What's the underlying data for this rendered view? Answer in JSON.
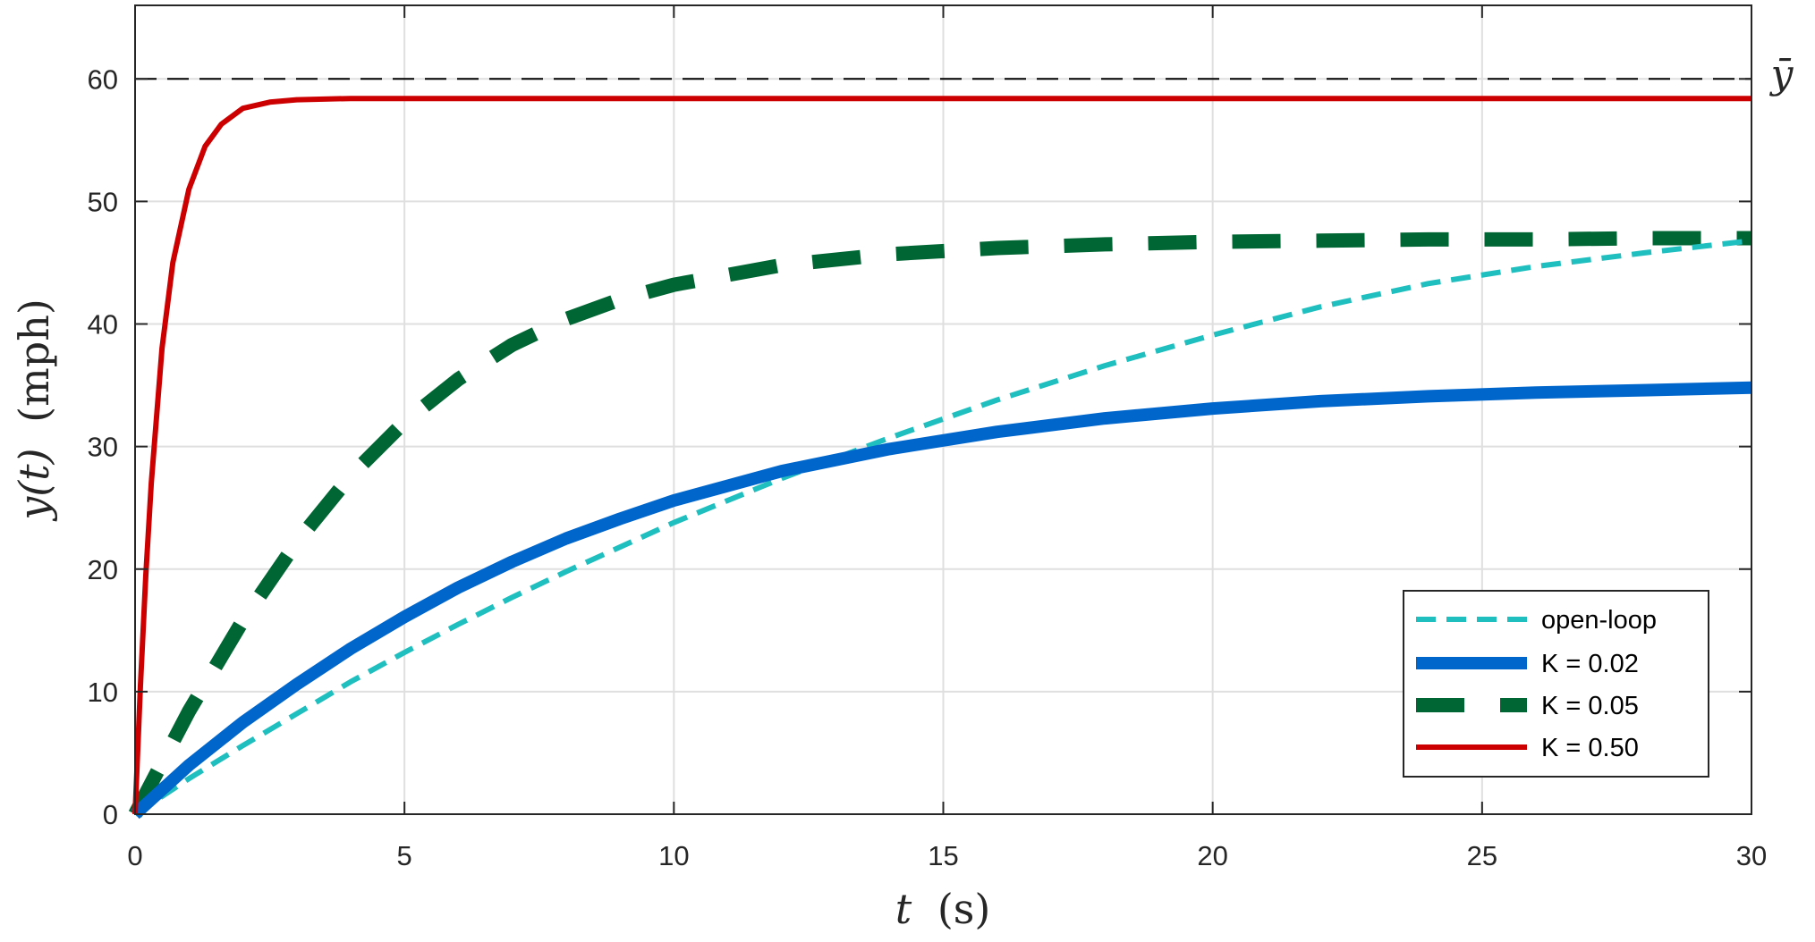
{
  "chart_data": {
    "type": "line",
    "xlabel_var": "t",
    "xlabel_unit": "(s)",
    "ylabel_var": "y(t)",
    "ylabel_unit": "(mph)",
    "xlim": [
      0,
      30
    ],
    "ylim": [
      0,
      66
    ],
    "xticks": [
      0,
      5,
      10,
      15,
      20,
      25,
      30
    ],
    "yticks": [
      0,
      10,
      20,
      30,
      40,
      50,
      60
    ],
    "grid": true,
    "legend_position": "bottom-right",
    "reference_line": {
      "y": 60,
      "label": "ȳ",
      "color": "#000000"
    },
    "series": [
      {
        "name": "open-loop",
        "color": "#1fbfbf",
        "style": "dashed",
        "x": [
          0,
          1,
          2,
          3,
          4,
          5,
          6,
          7,
          8,
          9,
          10,
          12,
          14,
          16,
          18,
          20,
          22,
          24,
          26,
          28,
          30
        ],
        "y": [
          0,
          2.9,
          5.6,
          8.2,
          10.8,
          13.2,
          15.5,
          17.7,
          19.8,
          21.8,
          23.8,
          27.4,
          30.7,
          33.8,
          36.6,
          39.1,
          41.4,
          43.3,
          44.7,
          45.8,
          46.8
        ]
      },
      {
        "name": "K = 0.02",
        "color": "#0066cc",
        "style": "solid-thick",
        "x": [
          0,
          1,
          2,
          3,
          4,
          5,
          6,
          7,
          8,
          9,
          10,
          12,
          14,
          16,
          18,
          20,
          22,
          24,
          26,
          28,
          30
        ],
        "y": [
          0,
          4.0,
          7.5,
          10.6,
          13.5,
          16.1,
          18.5,
          20.6,
          22.5,
          24.1,
          25.6,
          28.0,
          29.8,
          31.2,
          32.3,
          33.1,
          33.7,
          34.1,
          34.4,
          34.6,
          34.8
        ]
      },
      {
        "name": "K = 0.05",
        "color": "#006633",
        "style": "dashed-thick",
        "x": [
          0,
          1,
          2,
          3,
          4,
          5,
          6,
          7,
          8,
          9,
          10,
          12,
          14,
          16,
          18,
          20,
          22,
          24,
          26,
          28,
          30
        ],
        "y": [
          0,
          8.4,
          15.8,
          22.2,
          27.6,
          32.0,
          35.5,
          38.3,
          40.4,
          42.0,
          43.2,
          44.8,
          45.7,
          46.2,
          46.5,
          46.7,
          46.8,
          46.9,
          46.9,
          47.0,
          47.0
        ]
      },
      {
        "name": "K = 0.50",
        "color": "#cc0000",
        "style": "solid",
        "x": [
          0,
          0.1,
          0.2,
          0.3,
          0.5,
          0.7,
          1.0,
          1.3,
          1.6,
          2.0,
          2.5,
          3.0,
          4.0,
          5.0,
          10,
          20,
          30
        ],
        "y": [
          0,
          10.5,
          19.5,
          27.0,
          38.0,
          45.0,
          51.0,
          54.5,
          56.3,
          57.6,
          58.1,
          58.3,
          58.4,
          58.4,
          58.4,
          58.4,
          58.4
        ]
      }
    ]
  }
}
